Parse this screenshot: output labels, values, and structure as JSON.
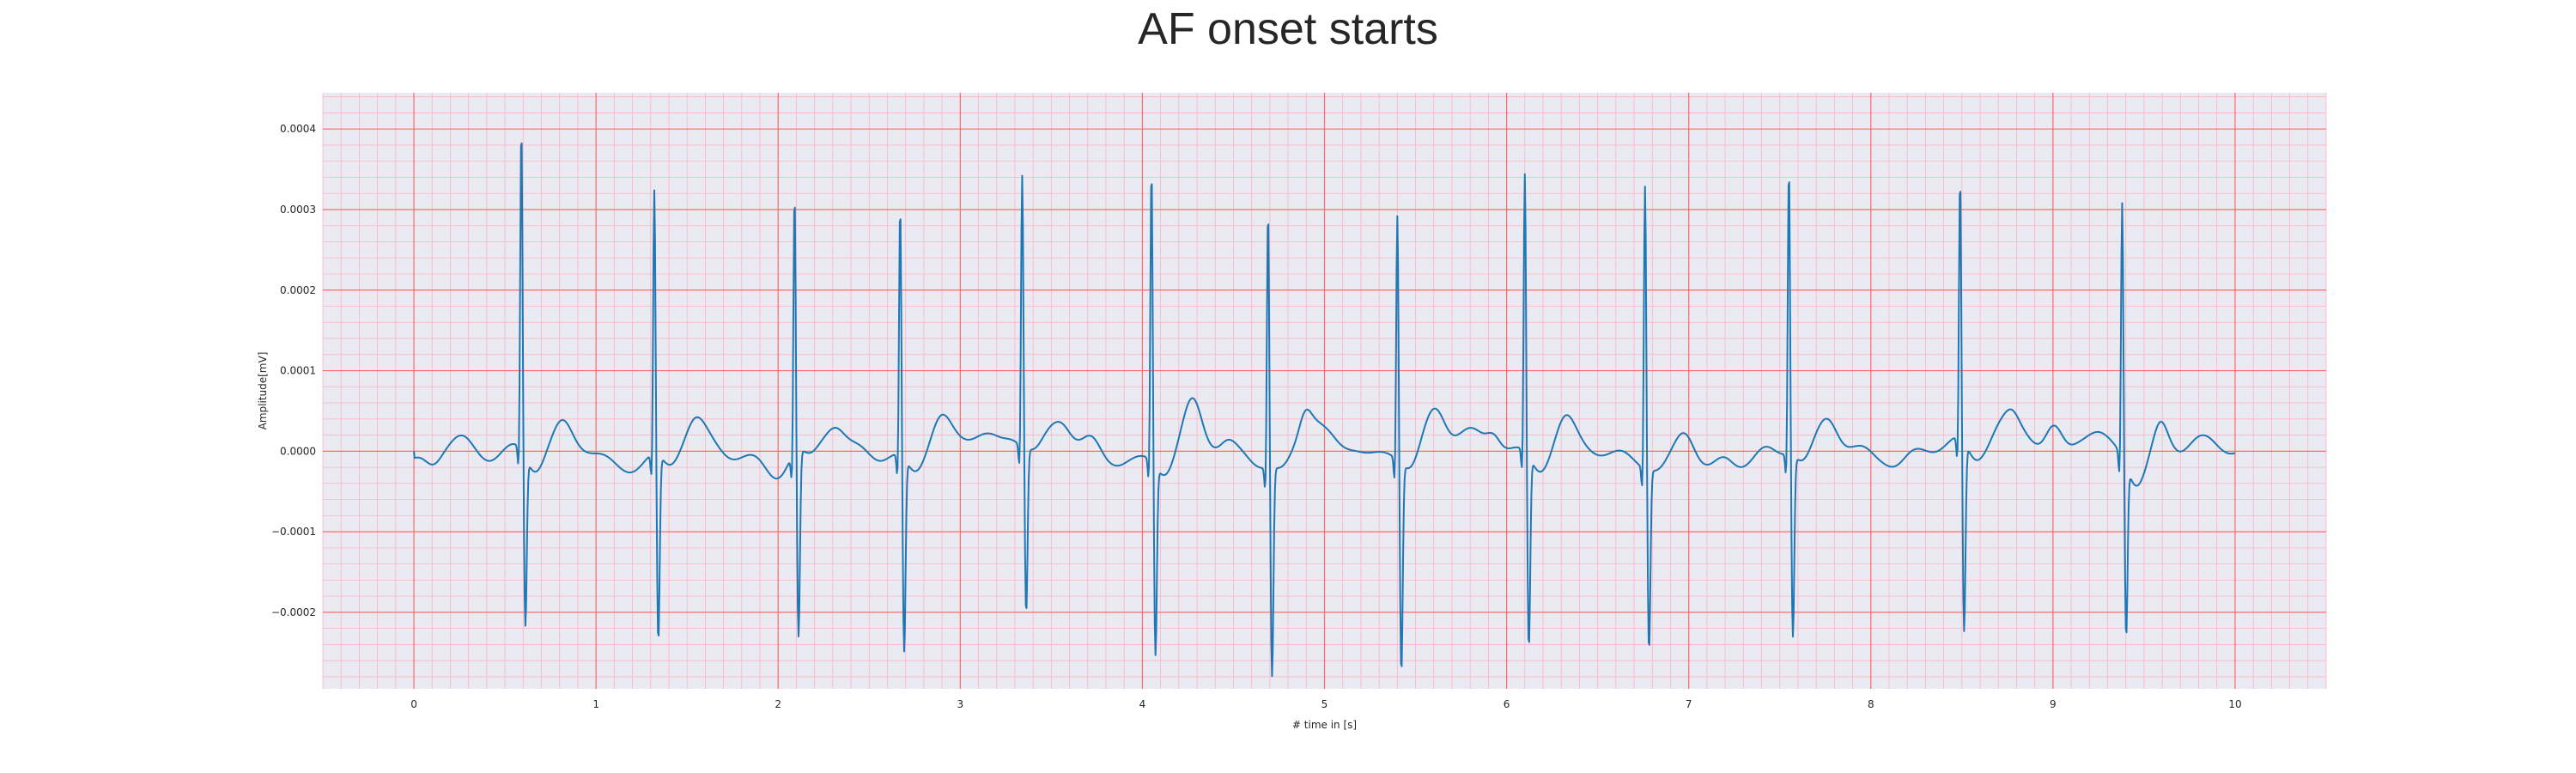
{
  "chart_data": {
    "type": "line",
    "title": "AF onset starts",
    "xlabel": "# time in [s]",
    "ylabel": "Amplitude[mV]",
    "xlim": [
      -0.5,
      10.5
    ],
    "ylim": [
      -0.000295,
      0.000445
    ],
    "x_ticks": [
      0,
      1,
      2,
      3,
      4,
      5,
      6,
      7,
      8,
      9,
      10
    ],
    "x_tick_labels": [
      "0",
      "1",
      "2",
      "3",
      "4",
      "5",
      "6",
      "7",
      "8",
      "9",
      "10"
    ],
    "y_ticks": [
      -0.0002,
      -0.0001,
      0.0,
      0.0001,
      0.0002,
      0.0003,
      0.0004
    ],
    "y_tick_labels": [
      "−0.0002",
      "−0.0001",
      "0.0000",
      "0.0001",
      "0.0002",
      "0.0003",
      "0.0004"
    ],
    "grid": {
      "major": true,
      "minor": true,
      "major_color": "#ff6b6b",
      "minor_color": "#ffb3c1"
    },
    "background_color": "#eaeaf2",
    "series": [
      {
        "color": "#1f77b4",
        "beats": [
          {
            "t": 0.59,
            "r": 0.00041,
            "s": -0.00021
          },
          {
            "t": 1.32,
            "r": 0.000337,
            "s": -0.000232
          },
          {
            "t": 2.09,
            "r": 0.00033,
            "s": -0.000232
          },
          {
            "t": 2.67,
            "r": 0.000318,
            "s": -0.00024
          },
          {
            "t": 3.34,
            "r": 0.000345,
            "s": -0.000206
          },
          {
            "t": 4.05,
            "r": 0.000372,
            "s": -0.000235
          },
          {
            "t": 4.69,
            "r": 0.000328,
            "s": -0.00026
          },
          {
            "t": 5.4,
            "r": 0.000313,
            "s": -0.00026
          },
          {
            "t": 6.1,
            "r": 0.000354,
            "s": -0.000238
          },
          {
            "t": 6.76,
            "r": 0.00036,
            "s": -0.000225
          },
          {
            "t": 7.55,
            "r": 0.000365,
            "s": -0.000225
          },
          {
            "t": 8.49,
            "r": 0.000332,
            "s": -0.000235
          },
          {
            "t": 9.38,
            "r": 0.000325,
            "s": -0.000212
          }
        ],
        "t_start": 0,
        "t_end": 10,
        "sample_rate_hz": 250
      }
    ]
  }
}
